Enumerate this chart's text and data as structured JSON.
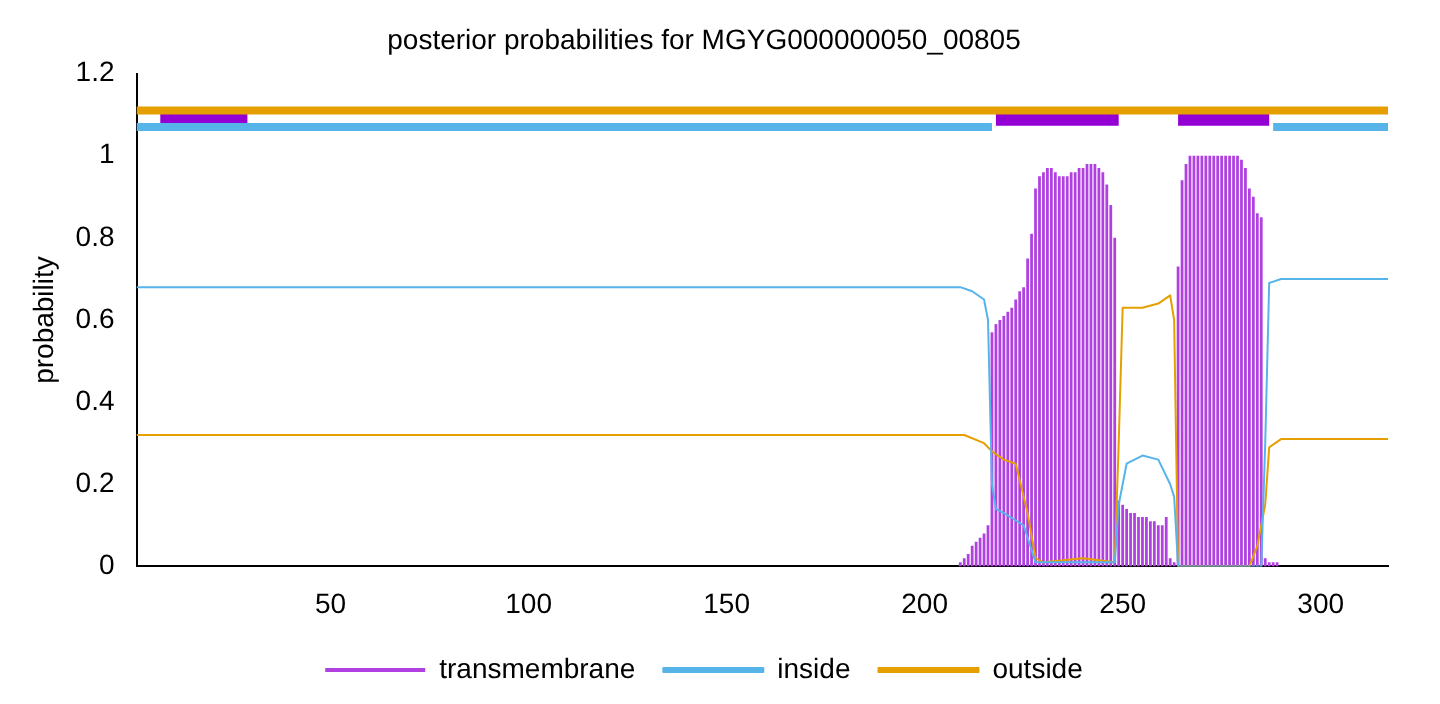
{
  "chart_data": {
    "type": "line",
    "title": "posterior probabilities for MGYG000000050_00805",
    "ylabel": "probability",
    "xlim": [
      1,
      317
    ],
    "xticks": [
      50,
      100,
      150,
      200,
      250,
      300
    ],
    "ylim": [
      0,
      1.2
    ],
    "yticks": [
      0,
      0.2,
      0.4,
      0.6,
      0.8,
      1,
      1.2
    ],
    "grid": false,
    "legend": "bottom",
    "marker": "none",
    "series": [
      {
        "name": "transmembrane",
        "type": "bar",
        "color": "#b040e0",
        "x": [
          209,
          210,
          211,
          212,
          213,
          214,
          215,
          216,
          217,
          218,
          219,
          220,
          221,
          222,
          223,
          224,
          225,
          226,
          227,
          228,
          229,
          230,
          231,
          232,
          233,
          234,
          235,
          236,
          237,
          238,
          239,
          240,
          241,
          242,
          243,
          244,
          245,
          246,
          247,
          248,
          249,
          250,
          251,
          252,
          253,
          254,
          255,
          256,
          257,
          258,
          259,
          260,
          261,
          262,
          263,
          264,
          265,
          266,
          267,
          268,
          269,
          270,
          271,
          272,
          273,
          274,
          275,
          276,
          277,
          278,
          279,
          280,
          281,
          282,
          283,
          284,
          285,
          286,
          287,
          288,
          289
        ],
        "values": [
          0.01,
          0.02,
          0.03,
          0.05,
          0.06,
          0.07,
          0.08,
          0.1,
          0.57,
          0.59,
          0.6,
          0.61,
          0.62,
          0.63,
          0.65,
          0.67,
          0.68,
          0.75,
          0.81,
          0.92,
          0.95,
          0.96,
          0.97,
          0.97,
          0.96,
          0.95,
          0.95,
          0.95,
          0.96,
          0.96,
          0.97,
          0.97,
          0.98,
          0.98,
          0.98,
          0.97,
          0.96,
          0.93,
          0.88,
          0.8,
          0.16,
          0.15,
          0.14,
          0.13,
          0.13,
          0.12,
          0.12,
          0.12,
          0.11,
          0.11,
          0.1,
          0.1,
          0.12,
          0.02,
          0.01,
          0.73,
          0.94,
          0.98,
          1,
          1,
          1,
          1,
          1,
          1,
          1,
          1,
          1,
          1,
          1,
          1,
          1,
          0.99,
          0.97,
          0.92,
          0.9,
          0.86,
          0.85,
          0.02,
          0.01,
          0.01,
          0.01
        ]
      },
      {
        "name": "inside",
        "color": "#56b4e9",
        "x": [
          1,
          209,
          212,
          215,
          216,
          217,
          218,
          220,
          225,
          228,
          230,
          240,
          248,
          249,
          251,
          255,
          259,
          262,
          263,
          264,
          285,
          286,
          287,
          290,
          317
        ],
        "values": [
          0.68,
          0.68,
          0.67,
          0.65,
          0.6,
          0.2,
          0.14,
          0.13,
          0.1,
          0.01,
          0.01,
          0.01,
          0.01,
          0.15,
          0.25,
          0.27,
          0.26,
          0.2,
          0.17,
          0,
          0,
          0.3,
          0.69,
          0.7,
          0.7
        ]
      },
      {
        "name": "outside",
        "color": "#e69f00",
        "x": [
          1,
          210,
          215,
          217,
          220,
          223,
          226,
          228,
          230,
          240,
          248,
          249,
          250,
          255,
          259,
          262,
          263,
          264,
          282,
          284,
          286,
          287,
          290,
          317
        ],
        "values": [
          0.32,
          0.32,
          0.3,
          0.28,
          0.26,
          0.25,
          0.13,
          0.02,
          0.01,
          0.02,
          0.01,
          0.3,
          0.63,
          0.63,
          0.64,
          0.66,
          0.6,
          0,
          0,
          0.05,
          0.15,
          0.29,
          0.31,
          0.31
        ]
      },
      {
        "color": "#e69f00",
        "x": [
          1,
          317
        ],
        "values": [
          1.11,
          1.11
        ]
      },
      {
        "color": "#56b4e9",
        "x": [
          1,
          217
        ],
        "values": [
          1.07,
          1.07
        ]
      },
      {
        "color": "#56b4e9",
        "x": [
          288,
          317
        ],
        "values": [
          1.07,
          1.07
        ]
      },
      {
        "color": "#9400d3",
        "x": [
          7,
          29
        ],
        "values": [
          1.09,
          1.09
        ]
      },
      {
        "color": "#9400d3",
        "x": [
          218,
          249
        ],
        "values": [
          1.09,
          1.09
        ]
      },
      {
        "color": "#9400d3",
        "x": [
          264,
          287
        ],
        "values": [
          1.09,
          1.09
        ]
      }
    ]
  }
}
